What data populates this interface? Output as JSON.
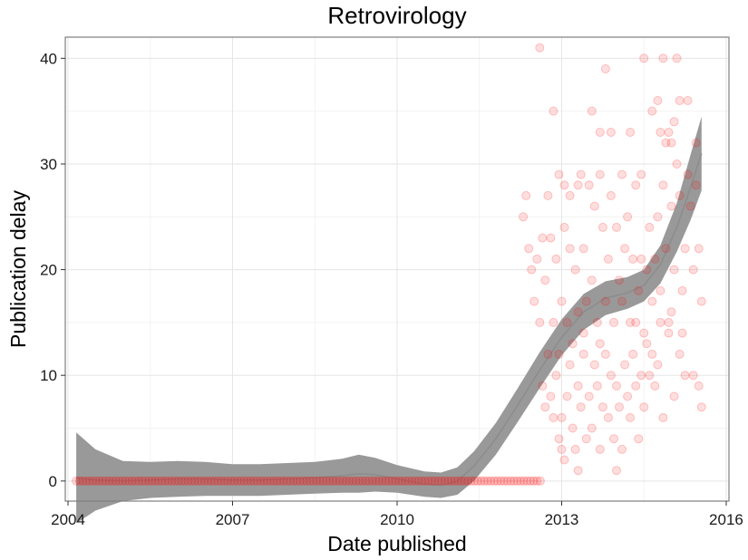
{
  "chart_data": {
    "type": "scatter",
    "title": "Retrovirology",
    "xlabel": "Date published",
    "ylabel": "Publication delay",
    "xlim": [
      2003.95,
      2016.05
    ],
    "ylim": [
      -1.9,
      42
    ],
    "xticks": [
      2004,
      2007,
      2010,
      2013,
      2016
    ],
    "yticks": [
      0,
      10,
      20,
      30,
      40
    ],
    "xtick_labels": [
      "2004",
      "2007",
      "2010",
      "2013",
      "2016"
    ],
    "ytick_labels": [
      "0",
      "10",
      "20",
      "30",
      "40"
    ],
    "grid": true,
    "legend": "none",
    "point_color": "#ff0000",
    "smooth_color": "#999999",
    "points_zero_delay": {
      "x_start": 2004.15,
      "x_end": 2012.65,
      "step": 0.06,
      "y": 0
    },
    "points": [
      [
        2012.6,
        41
      ],
      [
        2012.85,
        35
      ],
      [
        2012.95,
        29
      ],
      [
        2013.05,
        28
      ],
      [
        2013.15,
        22
      ],
      [
        2013.3,
        28
      ],
      [
        2013.55,
        35
      ],
      [
        2013.7,
        33
      ],
      [
        2013.8,
        39
      ],
      [
        2013.9,
        33
      ],
      [
        2014.1,
        29
      ],
      [
        2014.25,
        33
      ],
      [
        2014.45,
        29
      ],
      [
        2014.5,
        40
      ],
      [
        2014.65,
        35
      ],
      [
        2014.75,
        36
      ],
      [
        2014.8,
        33
      ],
      [
        2014.85,
        40
      ],
      [
        2014.9,
        32
      ],
      [
        2014.95,
        33
      ],
      [
        2015.0,
        32
      ],
      [
        2015.05,
        34
      ],
      [
        2015.1,
        40
      ],
      [
        2015.15,
        36
      ],
      [
        2015.3,
        36
      ],
      [
        2015.45,
        32
      ],
      [
        2012.3,
        25
      ],
      [
        2012.35,
        27
      ],
      [
        2012.4,
        22
      ],
      [
        2012.45,
        20
      ],
      [
        2012.5,
        17
      ],
      [
        2012.55,
        21
      ],
      [
        2012.6,
        15
      ],
      [
        2012.65,
        23
      ],
      [
        2012.7,
        19
      ],
      [
        2012.75,
        27
      ],
      [
        2012.8,
        23
      ],
      [
        2012.85,
        15
      ],
      [
        2012.9,
        21
      ],
      [
        2012.95,
        12
      ],
      [
        2013.0,
        17
      ],
      [
        2013.05,
        24
      ],
      [
        2013.1,
        15
      ],
      [
        2013.15,
        27
      ],
      [
        2013.2,
        13
      ],
      [
        2013.25,
        20
      ],
      [
        2013.3,
        16
      ],
      [
        2013.35,
        29
      ],
      [
        2013.4,
        22
      ],
      [
        2013.45,
        17
      ],
      [
        2013.5,
        28
      ],
      [
        2013.55,
        19
      ],
      [
        2013.6,
        26
      ],
      [
        2013.65,
        15
      ],
      [
        2013.7,
        29
      ],
      [
        2013.75,
        24
      ],
      [
        2013.8,
        17
      ],
      [
        2013.85,
        21
      ],
      [
        2013.9,
        27
      ],
      [
        2013.95,
        15
      ],
      [
        2014.0,
        24
      ],
      [
        2014.05,
        19
      ],
      [
        2014.1,
        17
      ],
      [
        2014.15,
        22
      ],
      [
        2014.2,
        25
      ],
      [
        2014.25,
        15
      ],
      [
        2014.3,
        21
      ],
      [
        2014.35,
        28
      ],
      [
        2014.4,
        18
      ],
      [
        2014.45,
        21
      ],
      [
        2014.5,
        14
      ],
      [
        2014.55,
        20
      ],
      [
        2014.6,
        24
      ],
      [
        2014.65,
        17
      ],
      [
        2014.7,
        21
      ],
      [
        2014.75,
        25
      ],
      [
        2014.8,
        18
      ],
      [
        2014.85,
        28
      ],
      [
        2014.9,
        22
      ],
      [
        2014.95,
        15
      ],
      [
        2015.0,
        26
      ],
      [
        2015.05,
        20
      ],
      [
        2015.1,
        30
      ],
      [
        2015.15,
        27
      ],
      [
        2015.2,
        18
      ],
      [
        2015.25,
        22
      ],
      [
        2015.3,
        29
      ],
      [
        2015.35,
        26
      ],
      [
        2015.4,
        20
      ],
      [
        2015.45,
        28
      ],
      [
        2015.5,
        22
      ],
      [
        2015.55,
        17
      ],
      [
        2012.65,
        9
      ],
      [
        2012.7,
        7
      ],
      [
        2012.75,
        12
      ],
      [
        2012.8,
        8
      ],
      [
        2012.85,
        6
      ],
      [
        2012.9,
        10
      ],
      [
        2012.95,
        4
      ],
      [
        2013.0,
        6
      ],
      [
        2013.05,
        2
      ],
      [
        2013.1,
        8
      ],
      [
        2013.15,
        11
      ],
      [
        2013.2,
        5
      ],
      [
        2013.25,
        3
      ],
      [
        2013.3,
        9
      ],
      [
        2013.35,
        7
      ],
      [
        2013.4,
        12
      ],
      [
        2013.45,
        4
      ],
      [
        2013.5,
        8
      ],
      [
        2013.55,
        5
      ],
      [
        2013.6,
        11
      ],
      [
        2013.65,
        9
      ],
      [
        2013.7,
        3
      ],
      [
        2013.75,
        7
      ],
      [
        2013.8,
        12
      ],
      [
        2013.85,
        6
      ],
      [
        2013.9,
        10
      ],
      [
        2013.95,
        4
      ],
      [
        2014.0,
        9
      ],
      [
        2014.05,
        7
      ],
      [
        2014.1,
        3
      ],
      [
        2014.15,
        11
      ],
      [
        2014.2,
        8
      ],
      [
        2014.25,
        6
      ],
      [
        2014.3,
        12
      ],
      [
        2014.35,
        9
      ],
      [
        2014.4,
        4
      ],
      [
        2014.45,
        10
      ],
      [
        2014.5,
        7
      ],
      [
        2014.55,
        13
      ],
      [
        2014.6,
        10
      ],
      [
        2014.65,
        12
      ],
      [
        2014.7,
        9
      ],
      [
        2014.75,
        11
      ],
      [
        2014.85,
        6
      ],
      [
        2014.95,
        14
      ],
      [
        2015.05,
        8
      ],
      [
        2015.15,
        12
      ],
      [
        2015.25,
        10
      ],
      [
        2015.4,
        10
      ],
      [
        2015.5,
        9
      ],
      [
        2015.55,
        7
      ],
      [
        2013.3,
        1
      ],
      [
        2013.0,
        3
      ],
      [
        2014.0,
        1
      ],
      [
        2013.7,
        13
      ],
      [
        2013.4,
        14
      ],
      [
        2014.35,
        15
      ],
      [
        2014.8,
        15
      ],
      [
        2015.0,
        16
      ],
      [
        2015.2,
        14
      ]
    ],
    "smooth_line": [
      [
        2004.15,
        0.3
      ],
      [
        2004.5,
        0.1
      ],
      [
        2005,
        0.0
      ],
      [
        2005.5,
        0.1
      ],
      [
        2006,
        0.2
      ],
      [
        2006.5,
        0.2
      ],
      [
        2007,
        0.1
      ],
      [
        2007.5,
        0.1
      ],
      [
        2008,
        0.2
      ],
      [
        2008.5,
        0.3
      ],
      [
        2009,
        0.5
      ],
      [
        2009.3,
        0.7
      ],
      [
        2009.6,
        0.6
      ],
      [
        2010,
        0.2
      ],
      [
        2010.5,
        -0.3
      ],
      [
        2010.8,
        -0.4
      ],
      [
        2011.1,
        0.0
      ],
      [
        2011.4,
        1.4
      ],
      [
        2011.8,
        4.0
      ],
      [
        2012.2,
        7.2
      ],
      [
        2012.6,
        10.5
      ],
      [
        2013,
        13.6
      ],
      [
        2013.4,
        16.0
      ],
      [
        2013.8,
        17.3
      ],
      [
        2014.2,
        17.8
      ],
      [
        2014.5,
        18.5
      ],
      [
        2014.8,
        20.5
      ],
      [
        2015.1,
        24.0
      ],
      [
        2015.35,
        27.8
      ],
      [
        2015.55,
        31.0
      ]
    ],
    "smooth_band_upper": [
      [
        2004.15,
        4.6
      ],
      [
        2004.5,
        3.0
      ],
      [
        2005,
        1.9
      ],
      [
        2005.5,
        1.8
      ],
      [
        2006,
        1.9
      ],
      [
        2006.5,
        1.8
      ],
      [
        2007,
        1.6
      ],
      [
        2007.5,
        1.6
      ],
      [
        2008,
        1.7
      ],
      [
        2008.5,
        1.8
      ],
      [
        2009,
        2.1
      ],
      [
        2009.3,
        2.5
      ],
      [
        2009.6,
        2.2
      ],
      [
        2010,
        1.5
      ],
      [
        2010.5,
        0.9
      ],
      [
        2010.8,
        0.8
      ],
      [
        2011.1,
        1.3
      ],
      [
        2011.4,
        2.8
      ],
      [
        2011.8,
        5.5
      ],
      [
        2012.2,
        8.8
      ],
      [
        2012.6,
        12.2
      ],
      [
        2013,
        15.3
      ],
      [
        2013.4,
        17.7
      ],
      [
        2013.8,
        18.9
      ],
      [
        2014.2,
        19.3
      ],
      [
        2014.5,
        20.0
      ],
      [
        2014.8,
        22.3
      ],
      [
        2015.1,
        26.3
      ],
      [
        2015.35,
        30.9
      ],
      [
        2015.55,
        34.5
      ]
    ],
    "smooth_band_lower": [
      [
        2004.15,
        -4.0
      ],
      [
        2004.5,
        -2.8
      ],
      [
        2005,
        -1.9
      ],
      [
        2005.5,
        -1.6
      ],
      [
        2006,
        -1.5
      ],
      [
        2006.5,
        -1.4
      ],
      [
        2007,
        -1.4
      ],
      [
        2007.5,
        -1.4
      ],
      [
        2008,
        -1.3
      ],
      [
        2008.5,
        -1.2
      ],
      [
        2009,
        -1.1
      ],
      [
        2009.3,
        -1.1
      ],
      [
        2009.6,
        -1.0
      ],
      [
        2010,
        -1.1
      ],
      [
        2010.5,
        -1.5
      ],
      [
        2010.8,
        -1.6
      ],
      [
        2011.1,
        -1.3
      ],
      [
        2011.4,
        0.0
      ],
      [
        2011.8,
        2.5
      ],
      [
        2012.2,
        5.6
      ],
      [
        2012.6,
        8.8
      ],
      [
        2013,
        11.9
      ],
      [
        2013.4,
        14.3
      ],
      [
        2013.8,
        15.7
      ],
      [
        2014.2,
        16.3
      ],
      [
        2014.5,
        17.0
      ],
      [
        2014.8,
        18.7
      ],
      [
        2015.1,
        21.7
      ],
      [
        2015.35,
        24.7
      ],
      [
        2015.55,
        27.5
      ]
    ]
  }
}
